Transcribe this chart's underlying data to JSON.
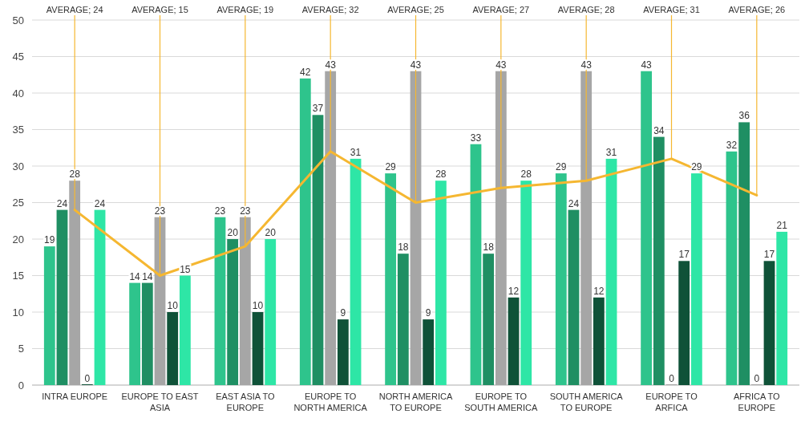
{
  "chart_data": {
    "type": "bar",
    "categories": [
      "INTRA EUROPE",
      "EUROPE TO EAST ASIA",
      "EAST ASIA TO EUROPE",
      "EUROPE TO NORTH AMERICA",
      "NORTH AMERICA TO EUROPE",
      "EUROPE TO SOUTH AMERICA",
      "SOUTH AMERICA TO EUROPE",
      "EUROPE TO ARFICA",
      "AFRICA TO EUROPE"
    ],
    "series": [
      {
        "color": "#2ec48c",
        "values": [
          19,
          14,
          23,
          42,
          29,
          33,
          29,
          43,
          32
        ]
      },
      {
        "color": "#1f8f63",
        "values": [
          24,
          14,
          20,
          37,
          18,
          18,
          24,
          34,
          36
        ]
      },
      {
        "color": "#a6a6a6",
        "values": [
          28,
          23,
          23,
          43,
          43,
          43,
          43,
          0,
          0
        ]
      },
      {
        "color": "#0f5238",
        "values": [
          0,
          10,
          10,
          9,
          9,
          12,
          12,
          17,
          17
        ]
      },
      {
        "color": "#2ee6a6",
        "values": [
          24,
          15,
          20,
          31,
          28,
          28,
          31,
          29,
          21
        ]
      },
      {
        "type": "line",
        "color": "#f5b731",
        "values": [
          24,
          15,
          19,
          32,
          25,
          27,
          28,
          31,
          26
        ],
        "value_labels": [
          "AVERAGE; 24",
          "AVERAGE; 15",
          "AVERAGE; 19",
          "AVERAGE; 32",
          "AVERAGE; 25",
          "AVERAGE; 27",
          "AVERAGE; 28",
          "AVERAGE; 31",
          "AVERAGE; 26"
        ]
      }
    ],
    "data_labels": true,
    "ylim": [
      0,
      50
    ],
    "yticks": [
      0,
      5,
      10,
      15,
      20,
      25,
      30,
      35,
      40,
      45,
      50
    ],
    "grid": "y"
  }
}
